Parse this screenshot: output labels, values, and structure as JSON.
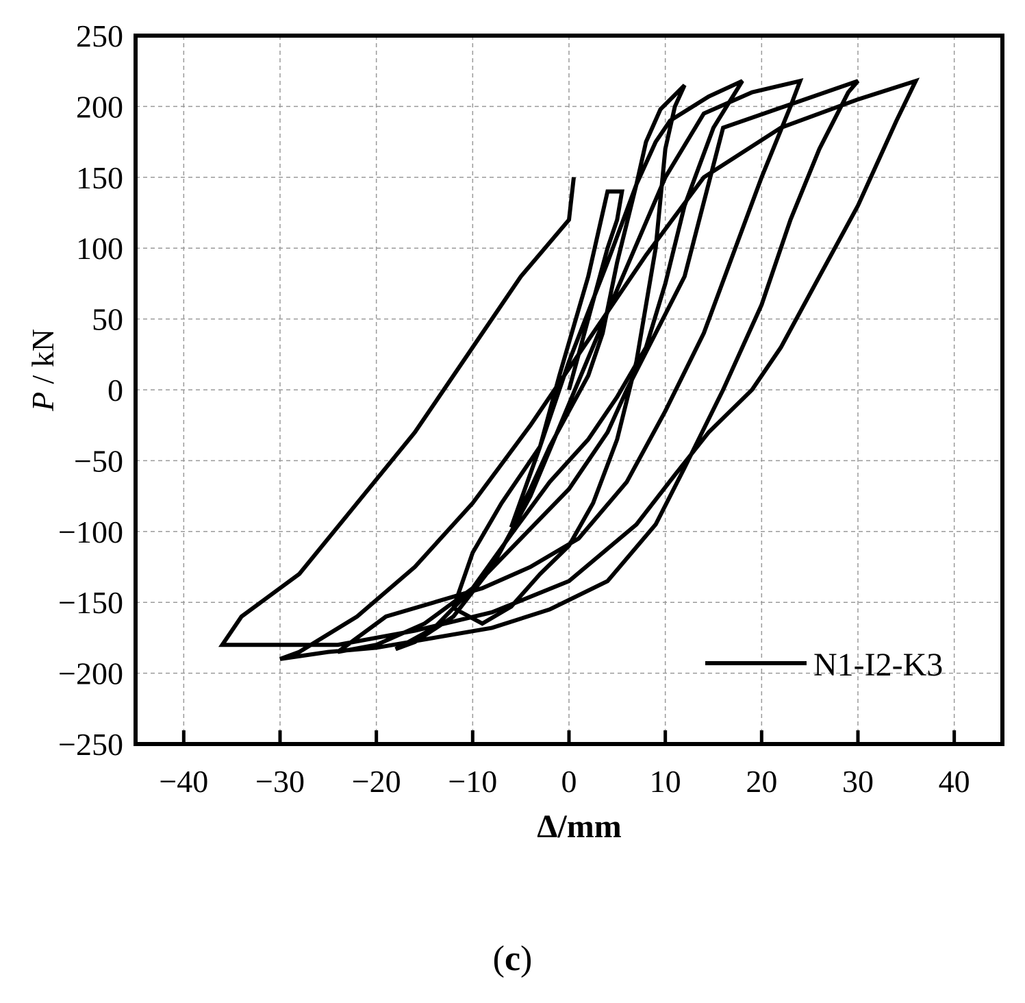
{
  "chart_data": {
    "type": "line",
    "xlabel": "Δ/mm",
    "ylabel_italic": "P",
    "ylabel_rest": " / kN",
    "xlim": [
      -45,
      45
    ],
    "ylim": [
      -250,
      250
    ],
    "xticks": [
      -40,
      -30,
      -20,
      -10,
      0,
      10,
      20,
      30,
      40
    ],
    "yticks": [
      250,
      200,
      150,
      100,
      50,
      0,
      -50,
      -100,
      -150,
      -200,
      -250
    ],
    "xtick_labels": [
      "−40",
      "−30",
      "−20",
      "−10",
      "0",
      "10",
      "20",
      "30",
      "40"
    ],
    "ytick_labels": [
      "250",
      "200",
      "150",
      "100",
      "50",
      "0",
      "−50",
      "−100",
      "−150",
      "−200",
      "−250"
    ],
    "grid": true,
    "legend_position": "bottom-right",
    "series": [
      {
        "name": "N1-I2-K3",
        "color": "#000000",
        "x": [
          0,
          2,
          4,
          5,
          5.5,
          4,
          2,
          -1,
          -3,
          -6,
          -4,
          -2,
          0,
          2,
          3.5,
          5,
          7,
          8,
          9.5,
          12,
          11,
          10,
          9,
          7,
          5,
          2.5,
          0,
          -3,
          -6,
          -9,
          -12,
          -10,
          -7,
          -3,
          0,
          4,
          7,
          9,
          10.5,
          14.5,
          18,
          15,
          12,
          10,
          8,
          5,
          2,
          -2,
          -6,
          -10,
          -14,
          -18,
          -16,
          -12,
          -8,
          -4,
          0,
          4,
          10,
          14,
          19,
          24,
          23,
          20,
          17,
          14,
          10,
          6,
          1,
          -4,
          -9,
          -14,
          -19,
          -24,
          -20,
          -15,
          -10,
          -5,
          0,
          4,
          6,
          12,
          16,
          30,
          29,
          26,
          23,
          20,
          16,
          12,
          9,
          4,
          -2,
          -8,
          -14,
          -20,
          -25,
          -30,
          -28,
          -22,
          -16,
          -10,
          -4,
          2,
          8,
          14,
          22,
          30,
          36,
          34,
          30,
          26,
          22,
          19,
          14.5,
          11,
          7,
          0,
          -8,
          -16,
          -24,
          -36,
          -34,
          -28,
          -22,
          -16,
          -10,
          -5,
          0,
          0.5
        ],
        "y": [
          0,
          50,
          100,
          120,
          140,
          140,
          80,
          10,
          -40,
          -97,
          -70,
          -40,
          -15,
          10,
          40,
          90,
          145,
          175,
          198,
          215,
          200,
          170,
          100,
          20,
          -35,
          -80,
          -110,
          -130,
          -153,
          -165,
          -154,
          -115,
          -80,
          -40,
          20,
          90,
          145,
          175,
          190,
          207,
          218,
          185,
          130,
          75,
          30,
          -5,
          -35,
          -65,
          -102,
          -140,
          -168,
          -183,
          -178,
          -160,
          -125,
          -75,
          -10,
          55,
          150,
          195,
          210,
          218,
          200,
          150,
          95,
          40,
          -15,
          -65,
          -105,
          -125,
          -140,
          -150,
          -160,
          -185,
          -180,
          -165,
          -140,
          -105,
          -70,
          -30,
          0,
          80,
          185,
          218,
          210,
          170,
          120,
          60,
          0,
          -55,
          -95,
          -135,
          -155,
          -168,
          -175,
          -182,
          -185,
          -190,
          -185,
          -160,
          -125,
          -80,
          -25,
          35,
          95,
          150,
          185,
          205,
          218,
          190,
          130,
          80,
          30,
          0,
          -30,
          -60,
          -95,
          -135,
          -157,
          -170,
          -180,
          -180,
          -160,
          -130,
          -80,
          -30,
          30,
          80,
          120,
          150
        ]
      }
    ]
  },
  "caption": {
    "open": "(",
    "letter": "c",
    "close": ")"
  }
}
